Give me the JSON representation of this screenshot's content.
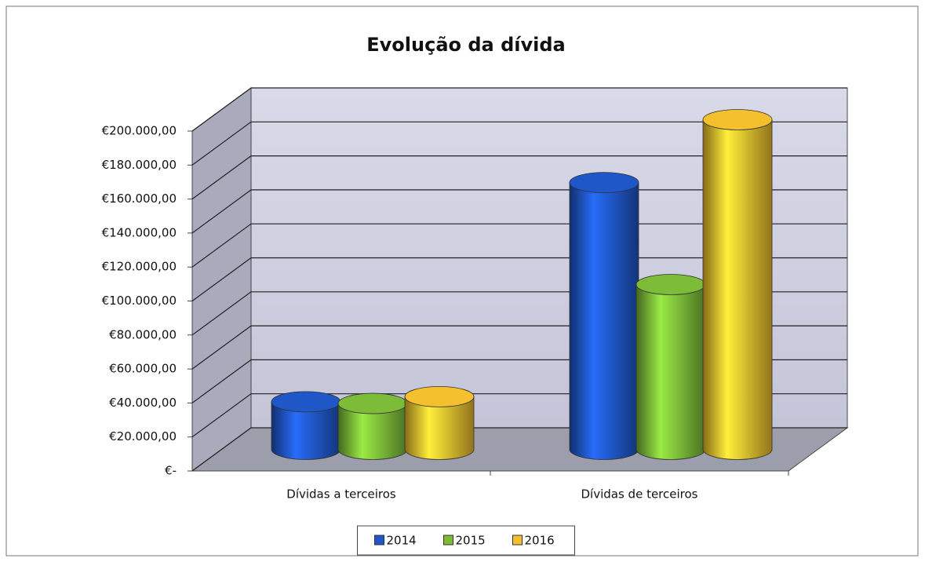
{
  "chart_data": {
    "type": "bar3d",
    "title": "Evolução da dívida",
    "categories": [
      "Dívidas a terceiros",
      "Dívidas de terceiros"
    ],
    "series": [
      {
        "name": "2014",
        "color": "#1f56c8",
        "values": [
          28000,
          157000
        ]
      },
      {
        "name": "2015",
        "color": "#7cbc38",
        "values": [
          27000,
          97000
        ]
      },
      {
        "name": "2016",
        "color": "#f4c02e",
        "values": [
          31000,
          194000
        ]
      }
    ],
    "ylim": [
      0,
      200000
    ],
    "yticks": [
      {
        "value": 0,
        "label": "€-"
      },
      {
        "value": 20000,
        "label": "€20.000,00"
      },
      {
        "value": 40000,
        "label": "€40.000,00"
      },
      {
        "value": 60000,
        "label": "€60.000,00"
      },
      {
        "value": 80000,
        "label": "€80.000,00"
      },
      {
        "value": 100000,
        "label": "€100.000,00"
      },
      {
        "value": 120000,
        "label": "€120.000,00"
      },
      {
        "value": 140000,
        "label": "€140.000,00"
      },
      {
        "value": 160000,
        "label": "€160.000,00"
      },
      {
        "value": 180000,
        "label": "€180.000,00"
      },
      {
        "value": 200000,
        "label": "€200.000,00"
      }
    ],
    "grid": true,
    "legend": "bottom"
  }
}
